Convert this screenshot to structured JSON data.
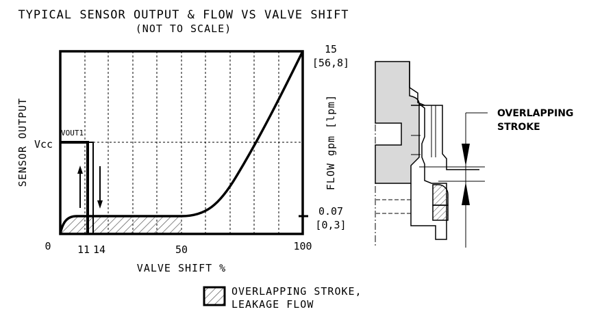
{
  "title": {
    "line1": "TYPICAL SENSOR OUTPUT & FLOW VS VALVE SHIFT",
    "line2": "(NOT TO SCALE)"
  },
  "axes": {
    "left_label": "SENSOR OUTPUT",
    "right_label": "FLOW gpm [lpm]",
    "x_label": "VALVE SHIFT %",
    "vcc_label": "Vcc",
    "vout_label": "VOUT1"
  },
  "ticks": {
    "x_zero": "0",
    "x_11": "11",
    "x_14": "14",
    "x_50": "50",
    "x_100": "100",
    "right_top_1": "15",
    "right_top_2": "[56,8]",
    "right_bottom_1": "0.07",
    "right_bottom_2": "[0,3]"
  },
  "legend": {
    "line1": "OVERLAPPING STROKE,",
    "line2": "LEAKAGE FLOW"
  },
  "section": {
    "overlap_line1": "OVERLAPPING",
    "overlap_line2": "STROKE"
  },
  "chart_data": {
    "type": "line",
    "x": [
      0,
      11,
      14,
      50,
      100
    ],
    "series": [
      {
        "values": [
          0.07,
          0.07,
          0.07,
          0.07,
          15
        ]
      }
    ]
  },
  "colors": {
    "hatch": "#555555",
    "fill_gray": "#d9d9d9"
  }
}
